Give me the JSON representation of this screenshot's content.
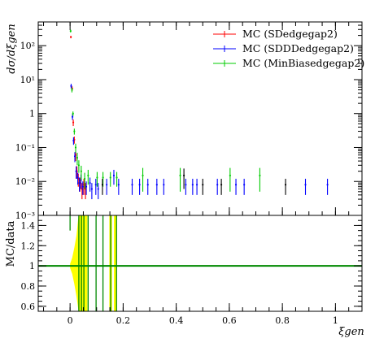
{
  "chart_data": [
    {
      "type": "scatter",
      "panel": "upper",
      "ylabel": "dσ/dξgen",
      "yscale": "log",
      "xlim": [
        -0.12,
        1.1
      ],
      "ylim": [
        0.001,
        500
      ],
      "yticks": [
        {
          "value": 0.001,
          "label": "10⁻³"
        },
        {
          "value": 0.01,
          "label": "10⁻²"
        },
        {
          "value": 0.1,
          "label": "10⁻¹"
        },
        {
          "value": 1,
          "label": "1"
        },
        {
          "value": 10,
          "label": "10¹"
        },
        {
          "value": 100,
          "label": "10²"
        }
      ],
      "legend_position": "top-right",
      "series": [
        {
          "name": "MC (SDedgegap2)",
          "color": "#ff0000",
          "points": [
            {
              "x": 0.003,
              "y": 180,
              "err": 15
            },
            {
              "x": 0.008,
              "y": 5.5,
              "err": 0.8
            },
            {
              "x": 0.012,
              "y": 0.55,
              "err": 0.12
            },
            {
              "x": 0.016,
              "y": 0.17,
              "err": 0.04
            },
            {
              "x": 0.021,
              "y": 0.06,
              "err": 0.02
            },
            {
              "x": 0.026,
              "y": 0.02,
              "err": 0.008
            },
            {
              "x": 0.031,
              "y": 0.012,
              "err": 0.005
            },
            {
              "x": 0.037,
              "y": 0.009,
              "err": 0.004
            },
            {
              "x": 0.045,
              "y": 0.006,
              "err": 0.003
            },
            {
              "x": 0.052,
              "y": 0.008,
              "err": 0.004
            },
            {
              "x": 0.058,
              "y": 0.006,
              "err": 0.003
            }
          ]
        },
        {
          "name": "MC (SDDDedgegap2)",
          "color": "#0000ff",
          "points": [
            {
              "x": 0.004,
              "y": 6.5,
              "err": 1.0
            },
            {
              "x": 0.009,
              "y": 0.8,
              "err": 0.15
            },
            {
              "x": 0.013,
              "y": 0.16,
              "err": 0.04
            },
            {
              "x": 0.018,
              "y": 0.055,
              "err": 0.018
            },
            {
              "x": 0.023,
              "y": 0.02,
              "err": 0.008
            },
            {
              "x": 0.029,
              "y": 0.013,
              "err": 0.005
            },
            {
              "x": 0.035,
              "y": 0.009,
              "err": 0.004
            },
            {
              "x": 0.041,
              "y": 0.011,
              "err": 0.005
            },
            {
              "x": 0.048,
              "y": 0.007,
              "err": 0.003
            },
            {
              "x": 0.061,
              "y": 0.007,
              "err": 0.003
            },
            {
              "x": 0.075,
              "y": 0.009,
              "err": 0.004
            },
            {
              "x": 0.082,
              "y": 0.006,
              "err": 0.003
            },
            {
              "x": 0.097,
              "y": 0.008,
              "err": 0.004
            },
            {
              "x": 0.106,
              "y": 0.006,
              "err": 0.003
            },
            {
              "x": 0.138,
              "y": 0.008,
              "err": 0.004
            },
            {
              "x": 0.165,
              "y": 0.015,
              "err": 0.007
            },
            {
              "x": 0.183,
              "y": 0.008,
              "err": 0.004
            },
            {
              "x": 0.234,
              "y": 0.008,
              "err": 0.004
            },
            {
              "x": 0.262,
              "y": 0.008,
              "err": 0.004
            },
            {
              "x": 0.293,
              "y": 0.008,
              "err": 0.004
            },
            {
              "x": 0.327,
              "y": 0.008,
              "err": 0.004
            },
            {
              "x": 0.353,
              "y": 0.008,
              "err": 0.004
            },
            {
              "x": 0.436,
              "y": 0.008,
              "err": 0.004
            },
            {
              "x": 0.462,
              "y": 0.008,
              "err": 0.004
            },
            {
              "x": 0.478,
              "y": 0.008,
              "err": 0.004
            },
            {
              "x": 0.555,
              "y": 0.008,
              "err": 0.004
            },
            {
              "x": 0.625,
              "y": 0.008,
              "err": 0.004
            },
            {
              "x": 0.656,
              "y": 0.008,
              "err": 0.004
            },
            {
              "x": 0.887,
              "y": 0.008,
              "err": 0.004
            },
            {
              "x": 0.97,
              "y": 0.008,
              "err": 0.004
            }
          ]
        },
        {
          "name": "MC (MinBiasedgegap2)",
          "color": "#00cc00",
          "points": [
            {
              "x": 0.002,
              "y": 270,
              "err": 25
            },
            {
              "x": 0.007,
              "y": 5.0,
              "err": 0.8
            },
            {
              "x": 0.011,
              "y": 1.0,
              "err": 0.15
            },
            {
              "x": 0.016,
              "y": 0.3,
              "err": 0.06
            },
            {
              "x": 0.021,
              "y": 0.1,
              "err": 0.03
            },
            {
              "x": 0.027,
              "y": 0.05,
              "err": 0.02
            },
            {
              "x": 0.033,
              "y": 0.03,
              "err": 0.012
            },
            {
              "x": 0.042,
              "y": 0.02,
              "err": 0.009
            },
            {
              "x": 0.055,
              "y": 0.012,
              "err": 0.006
            },
            {
              "x": 0.068,
              "y": 0.015,
              "err": 0.007
            },
            {
              "x": 0.102,
              "y": 0.013,
              "err": 0.006
            },
            {
              "x": 0.124,
              "y": 0.013,
              "err": 0.006
            },
            {
              "x": 0.152,
              "y": 0.013,
              "err": 0.006
            },
            {
              "x": 0.176,
              "y": 0.013,
              "err": 0.006
            },
            {
              "x": 0.274,
              "y": 0.015,
              "err": 0.01
            },
            {
              "x": 0.415,
              "y": 0.015,
              "err": 0.01
            },
            {
              "x": 0.603,
              "y": 0.015,
              "err": 0.01
            },
            {
              "x": 0.715,
              "y": 0.015,
              "err": 0.01
            }
          ]
        },
        {
          "name": "",
          "color": "#000000",
          "points": [
            {
              "x": 0.122,
              "y": 0.008,
              "err": 0.004
            },
            {
              "x": 0.429,
              "y": 0.015,
              "err": 0.009
            },
            {
              "x": 0.5,
              "y": 0.008,
              "err": 0.004
            },
            {
              "x": 0.57,
              "y": 0.008,
              "err": 0.004
            },
            {
              "x": 0.812,
              "y": 0.008,
              "err": 0.004
            }
          ]
        }
      ]
    },
    {
      "type": "bar",
      "panel": "lower",
      "ylabel": "MC/data",
      "xlabel": "ξgen",
      "xlim": [
        -0.12,
        1.1
      ],
      "ylim": [
        0.55,
        1.5
      ],
      "xticks": [
        {
          "value": 0,
          "label": "0"
        },
        {
          "value": 0.2,
          "label": "0.2"
        },
        {
          "value": 0.4,
          "label": "0.4"
        },
        {
          "value": 0.6,
          "label": "0.6"
        },
        {
          "value": 0.8,
          "label": "0.8"
        },
        {
          "value": 1,
          "label": "1"
        }
      ],
      "yticks": [
        {
          "value": 0.6,
          "label": "0.6"
        },
        {
          "value": 0.8,
          "label": "0.8"
        },
        {
          "value": 1,
          "label": "1"
        },
        {
          "value": 1.2,
          "label": "1.2"
        },
        {
          "value": 1.4,
          "label": "1.4"
        }
      ],
      "reference_line": 1.0,
      "reference_color": "#008800",
      "band_color": "#ffff00",
      "band": [
        {
          "x": 0.0,
          "lo": 0.98,
          "hi": 1.02
        },
        {
          "x": 0.008,
          "lo": 0.92,
          "hi": 1.08
        },
        {
          "x": 0.016,
          "lo": 0.82,
          "hi": 1.18
        },
        {
          "x": 0.024,
          "lo": 0.7,
          "hi": 1.3
        },
        {
          "x": 0.032,
          "lo": 0.55,
          "hi": 1.5
        },
        {
          "x": 0.065,
          "lo": 0.55,
          "hi": 1.5
        }
      ],
      "band_bars": [
        {
          "x0": 0.148,
          "x1": 0.158
        },
        {
          "x0": 0.165,
          "x1": 0.175
        }
      ],
      "ratio_lines": [
        {
          "x": 0.0,
          "lo": 1.35,
          "hi": 1.5,
          "color": "#008800"
        },
        {
          "x": 0.033,
          "lo": 0.55,
          "hi": 1.5,
          "color": "#008800"
        },
        {
          "x": 0.043,
          "lo": 0.55,
          "hi": 1.5,
          "color": "#008800"
        },
        {
          "x": 0.052,
          "lo": 0.55,
          "hi": 1.5,
          "color": "#008800"
        },
        {
          "x": 0.068,
          "lo": 0.55,
          "hi": 1.5,
          "color": "#008800"
        },
        {
          "x": 0.098,
          "lo": 0.55,
          "hi": 1.5,
          "color": "#008800"
        },
        {
          "x": 0.124,
          "lo": 0.55,
          "hi": 1.5,
          "color": "#008800"
        },
        {
          "x": 0.153,
          "lo": 0.55,
          "hi": 1.5,
          "color": "#008800"
        },
        {
          "x": 0.175,
          "lo": 0.55,
          "hi": 1.5,
          "color": "#008800"
        }
      ]
    }
  ],
  "legend": {
    "entries": [
      {
        "label": "MC (SDedgegap2)",
        "color": "#ff0000"
      },
      {
        "label": "MC (SDDDedgegap2)",
        "color": "#0000ff"
      },
      {
        "label": "MC (MinBiasedgegap2)",
        "color": "#00cc00"
      }
    ]
  }
}
